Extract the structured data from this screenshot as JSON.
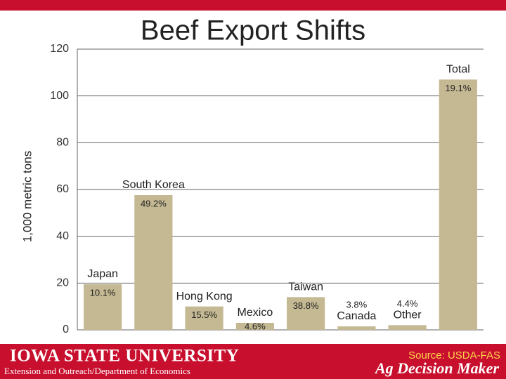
{
  "chart_data": {
    "type": "bar",
    "title": "Beef Export Shifts",
    "y_label": "1,000 metric tons",
    "categories": [
      "Japan",
      "South Korea",
      "Hong Kong",
      "Mexico",
      "Taiwan",
      "Canada",
      "Other",
      "Total"
    ],
    "values": [
      19.5,
      57.6,
      10,
      3,
      14,
      1.5,
      2,
      107
    ],
    "annotations": [
      "10.1%",
      "49.2%",
      "15.5%",
      "4.6%",
      "38.8%",
      "3.8%",
      "4.4%",
      "19.1%"
    ],
    "color": "#c4b993",
    "ylim": [
      0,
      120
    ],
    "yticks": [
      0,
      20,
      40,
      60,
      80,
      100,
      120
    ],
    "grid": true
  },
  "footer": {
    "university": "IOWA STATE UNIVERSITY",
    "department": "Extension and Outreach/Department of Economics",
    "source": "Source: USDA-FAS",
    "brand": "Ag Decision Maker"
  }
}
